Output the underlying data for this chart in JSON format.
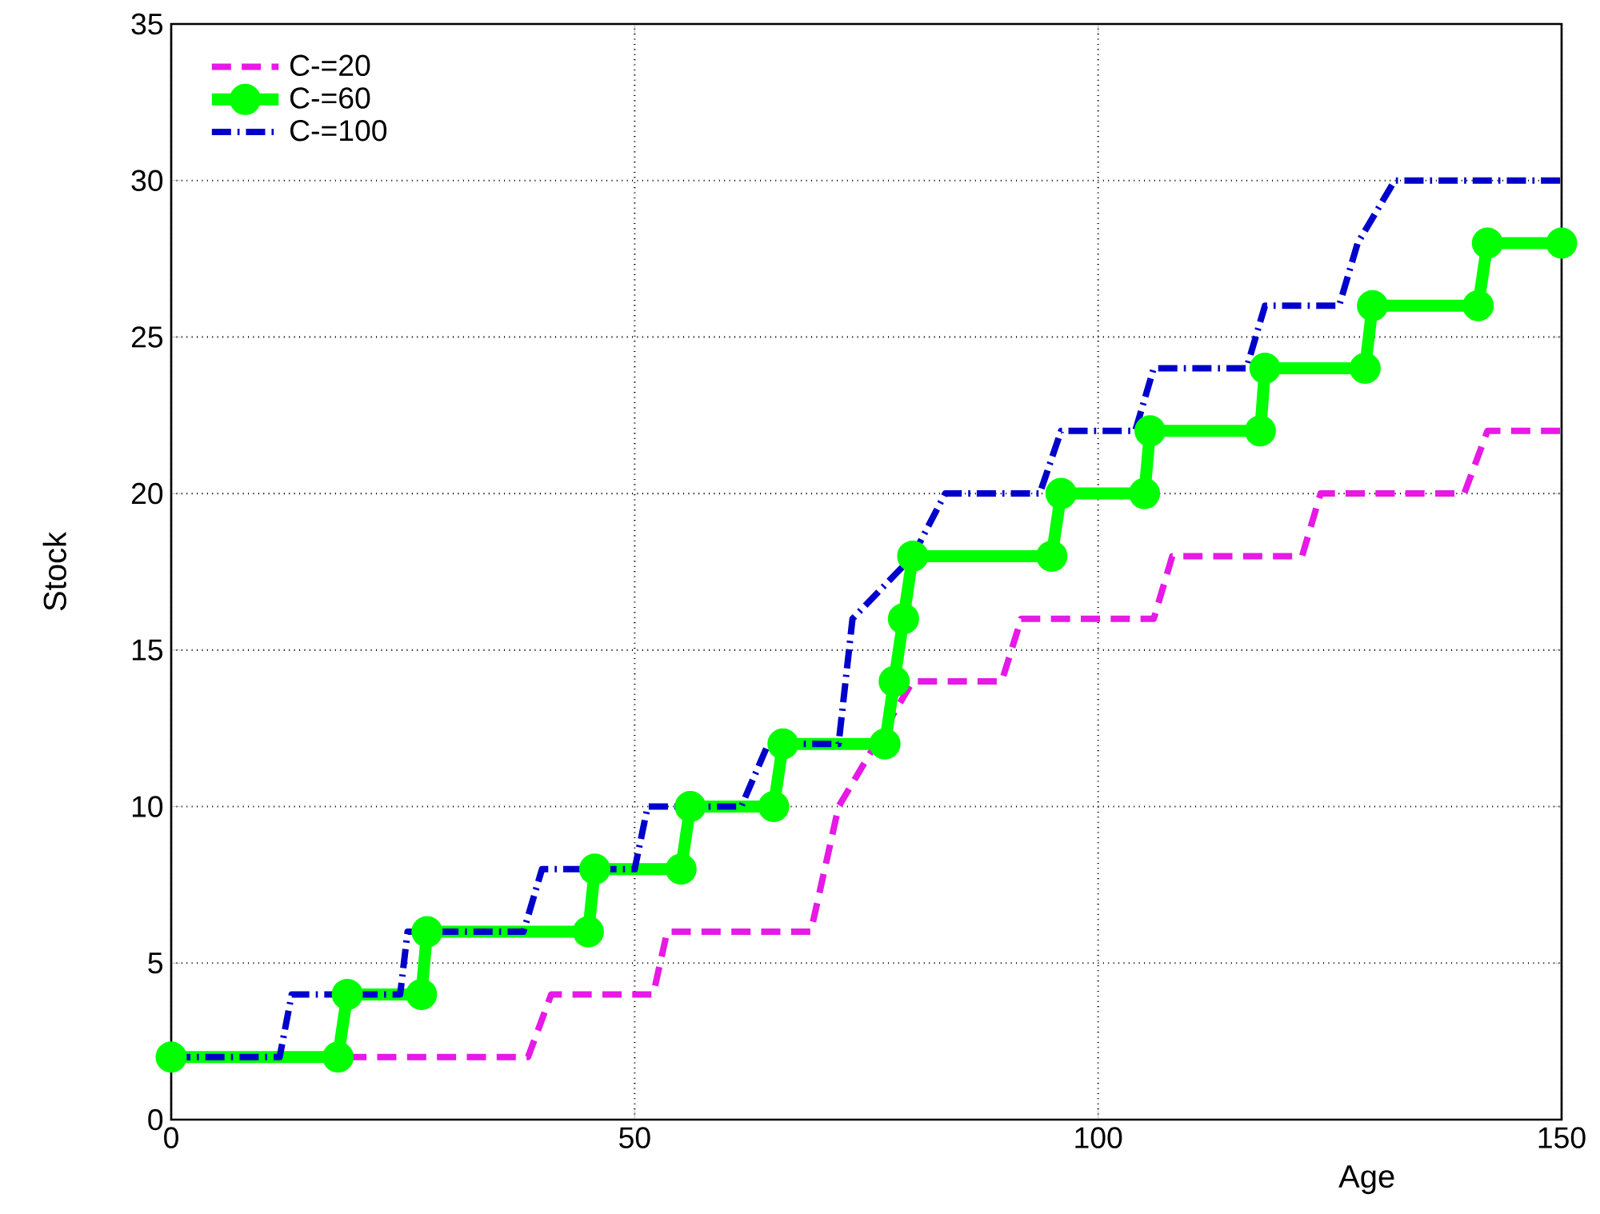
{
  "chart_data": {
    "type": "line",
    "xlabel": "Age",
    "ylabel": "Stock",
    "xlim": [
      0,
      150
    ],
    "ylim": [
      0,
      35
    ],
    "xticks": [
      0,
      50,
      100,
      150
    ],
    "yticks": [
      0,
      5,
      10,
      15,
      20,
      25,
      30,
      35
    ],
    "grid": true,
    "legend": "top left",
    "series": [
      {
        "name": "C-=20",
        "color": "#e619e6",
        "line_style": "dashed",
        "marker": "none",
        "x": [
          19,
          38.5,
          41,
          52,
          53.5,
          69,
          72,
          80,
          89.6,
          91.7,
          106,
          108,
          122,
          124,
          139.5,
          142,
          150
        ],
        "values": [
          2,
          2,
          4,
          4,
          6,
          6,
          10,
          14,
          14,
          16,
          16,
          18,
          18,
          20,
          20,
          22,
          22
        ]
      },
      {
        "name": "C-=60",
        "color": "#00ff00",
        "line_style": "solid",
        "marker": "circle",
        "x": [
          0,
          18,
          19,
          27,
          27.6,
          45,
          45.7,
          55,
          56,
          65,
          66,
          77,
          78,
          79,
          80,
          95,
          96,
          105,
          105.6,
          117.5,
          118,
          128.8,
          129.6,
          141,
          142,
          150
        ],
        "values": [
          2,
          2,
          4,
          4,
          6,
          6,
          8,
          8,
          10,
          10,
          12,
          12,
          14,
          16,
          18,
          18,
          20,
          20,
          22,
          22,
          24,
          24,
          26,
          26,
          28,
          28
        ]
      },
      {
        "name": "C-=100",
        "color": "#0000cc",
        "line_style": "dashdot",
        "marker": "none",
        "x": [
          0,
          11.7,
          13,
          24.7,
          25.5,
          38,
          40,
          50,
          51.4,
          61.5,
          64.4,
          72,
          73.5,
          80,
          83.5,
          93.7,
          96,
          104,
          106,
          116,
          118,
          126,
          128,
          132,
          150
        ],
        "values": [
          2,
          2,
          4,
          4,
          6,
          6,
          8,
          8,
          10,
          10,
          12,
          12,
          16,
          18,
          20,
          20,
          22,
          22,
          24,
          24,
          26,
          26,
          28,
          30,
          30
        ]
      }
    ]
  }
}
